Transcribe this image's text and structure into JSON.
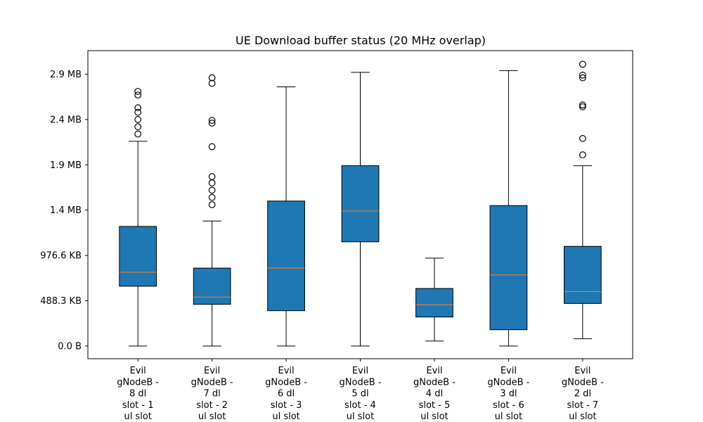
{
  "chart_data": {
    "type": "boxplot",
    "title": "UE Download buffer status (20 MHz overlap)",
    "xlabel": "",
    "ylabel": "",
    "y_unit": "bytes",
    "ylim": [
      -140000,
      3260000
    ],
    "y_ticks": [
      {
        "value": 0,
        "label": "0.0 B"
      },
      {
        "value": 500000,
        "label": "488.3 KB"
      },
      {
        "value": 1000000,
        "label": "976.6 KB"
      },
      {
        "value": 1500000,
        "label": "1.4 MB"
      },
      {
        "value": 2000000,
        "label": "1.9 MB"
      },
      {
        "value": 2500000,
        "label": "2.4 MB"
      },
      {
        "value": 3000000,
        "label": "2.9 MB"
      }
    ],
    "grid": false,
    "box_color": "#1f77b4",
    "median_color": "#ff7f0e",
    "categories": [
      [
        "Evil",
        "gNodeB -",
        "8 dl",
        "slot - 1",
        "ul slot"
      ],
      [
        "Evil",
        "gNodeB -",
        "7 dl",
        "slot - 2",
        "ul slot"
      ],
      [
        "Evil",
        "gNodeB -",
        "6 dl",
        "slot - 3",
        "ul slot"
      ],
      [
        "Evil",
        "gNodeB -",
        "5 dl",
        "slot - 4",
        "ul slot"
      ],
      [
        "Evil",
        "gNodeB -",
        "4 dl",
        "slot - 5",
        "ul slot"
      ],
      [
        "Evil",
        "gNodeB -",
        "3 dl",
        "slot - 6",
        "ul slot"
      ],
      [
        "Evil",
        "gNodeB -",
        "2 dl",
        "slot - 7",
        "ul slot"
      ]
    ],
    "boxes": [
      {
        "whisker_low": 0,
        "q1": 660000,
        "median": 815000,
        "q3": 1320000,
        "whisker_high": 2260000,
        "outliers": [
          2340000,
          2420000,
          2500000,
          2580000,
          2630000,
          2770000,
          2810000
        ]
      },
      {
        "whisker_low": 0,
        "q1": 460000,
        "median": 540000,
        "q3": 860000,
        "whisker_high": 1380000,
        "outliers": [
          1560000,
          1640000,
          1720000,
          1800000,
          1870000,
          2200000,
          2460000,
          2490000,
          2900000,
          2960000
        ]
      },
      {
        "whisker_low": 0,
        "q1": 390000,
        "median": 860000,
        "q3": 1600000,
        "whisker_high": 2860000,
        "outliers": []
      },
      {
        "whisker_low": 0,
        "q1": 1150000,
        "median": 1490000,
        "q3": 1990000,
        "whisker_high": 3020000,
        "outliers": []
      },
      {
        "whisker_low": 55000,
        "q1": 320000,
        "median": 455000,
        "q3": 635000,
        "whisker_high": 970000,
        "outliers": []
      },
      {
        "whisker_low": 0,
        "q1": 180000,
        "median": 785000,
        "q3": 1550000,
        "whisker_high": 3040000,
        "outliers": []
      },
      {
        "whisker_low": 80000,
        "q1": 470000,
        "median": 600000,
        "q3": 1100000,
        "whisker_high": 1990000,
        "outliers": [
          2110000,
          2290000,
          2640000,
          2660000,
          2960000,
          2990000,
          3110000
        ]
      }
    ]
  }
}
